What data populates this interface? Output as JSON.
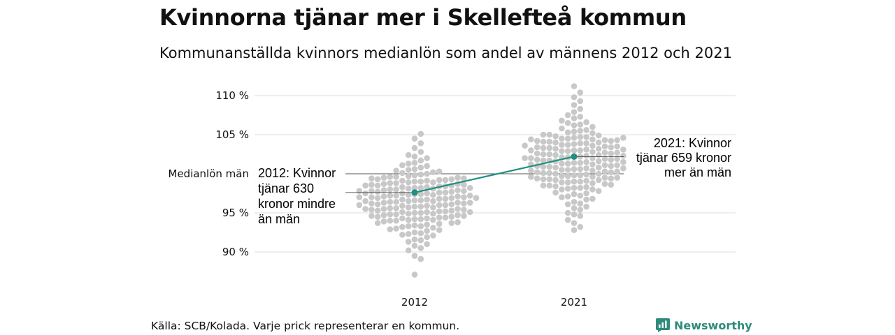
{
  "title": "Kvinnorna tjänar mer i Skellefteå kommun",
  "subtitle": "Kommunanställda kvinnors medianlön som andel av männens 2012 och 2021",
  "source": "Källa: SCB/Kolada. Varje prick representerar en kommun.",
  "brand": {
    "name": "Newsworthy",
    "icon": "newsworthy-logo-icon",
    "color": "#2e8b7d"
  },
  "chart_data": {
    "type": "scatter",
    "subtype": "beeswarm",
    "categories": [
      "2012",
      "2021"
    ],
    "y_ticks": [
      90,
      95,
      100,
      105,
      110
    ],
    "y_tick_labels": [
      "90 %",
      "95 %",
      "Medianlön män",
      "105 %",
      "110 %"
    ],
    "ylim": [
      86,
      112
    ],
    "grid": true,
    "dot_color": "#c8c8c8",
    "highlight_color": "#1f8f82",
    "highlight": {
      "name": "Skellefteå",
      "values": [
        97.6,
        102.2
      ]
    },
    "annotations": [
      {
        "category": "2012",
        "lines": [
          "2012: Kvinnor",
          "tjänar 630",
          "kronor mindre",
          "än män"
        ]
      },
      {
        "category": "2021",
        "lines": [
          "2021: Kvinnor",
          "tjänar 659 kronor",
          "mer än män"
        ]
      }
    ],
    "swarms": [
      {
        "category": "2012",
        "values": [
          87.1,
          89.1,
          89.5,
          90.2,
          90.5,
          90.8,
          91.0,
          91.3,
          91.6,
          91.9,
          92.1,
          92.3,
          92.5,
          92.7,
          92.9,
          93.1,
          93.2,
          93.4,
          93.5,
          93.7,
          93.8,
          94.0,
          94.1,
          94.2,
          94.3,
          94.4,
          94.5,
          94.6,
          94.7,
          94.8,
          94.9,
          95.0,
          95.1,
          95.2,
          95.3,
          95.4,
          95.5,
          95.6,
          95.7,
          95.8,
          95.9,
          96.0,
          96.1,
          96.2,
          96.3,
          96.4,
          96.5,
          96.6,
          96.7,
          96.8,
          96.9,
          97.0,
          97.1,
          97.2,
          97.3,
          97.4,
          97.5,
          97.6,
          97.7,
          97.8,
          97.9,
          98.0,
          98.1,
          98.2,
          98.3,
          98.4,
          98.5,
          98.6,
          98.7,
          98.8,
          98.9,
          99.0,
          99.1,
          99.2,
          99.3,
          99.4,
          99.5,
          99.6,
          99.7,
          99.8,
          100.0,
          100.2,
          100.4,
          100.6,
          100.8,
          101.1,
          101.4,
          101.7,
          102.0,
          102.4,
          102.8,
          103.3,
          103.9,
          104.5,
          105.1,
          94.0,
          94.5,
          95.0,
          95.5,
          96.0,
          96.5,
          97.0,
          97.5,
          98.0,
          98.5,
          99.0,
          94.2,
          94.8,
          95.3,
          95.8,
          96.3,
          96.8,
          97.3,
          97.8,
          98.3,
          98.8,
          99.3,
          93.6,
          94.4,
          95.2,
          96.1,
          96.9,
          97.7,
          98.6,
          99.4,
          93.3,
          94.1,
          95.4,
          96.2,
          97.1,
          98.1,
          99.1,
          100.1,
          93.9,
          94.7,
          95.6,
          96.4,
          97.2,
          98.2,
          99.2,
          100.3,
          92.8,
          93.0,
          94.3,
          95.7,
          96.7,
          97.9,
          98.9,
          100.5,
          101.0,
          92.4,
          93.3,
          94.6,
          95.9,
          97.4,
          98.4,
          99.6,
          101.3,
          91.5,
          92.2,
          93.7,
          95.1,
          96.6,
          97.6,
          98.7,
          99.9,
          102.2,
          96.0,
          96.5,
          97.0,
          97.5,
          95.5,
          96.9,
          97.2,
          94.9,
          95.1,
          96.3,
          97.8,
          98.2,
          98.5,
          99.5
        ]
      },
      {
        "category": "2021",
        "values": [
          92.8,
          93.2,
          93.7,
          94.1,
          94.6,
          95.0,
          95.4,
          95.8,
          96.1,
          96.4,
          96.7,
          97.0,
          97.2,
          97.4,
          97.6,
          97.8,
          98.0,
          98.2,
          98.3,
          98.5,
          98.6,
          98.8,
          98.9,
          99.0,
          99.1,
          99.2,
          99.3,
          99.4,
          99.5,
          99.6,
          99.7,
          99.8,
          99.9,
          100.0,
          100.1,
          100.2,
          100.3,
          100.4,
          100.5,
          100.6,
          100.7,
          100.8,
          100.9,
          101.0,
          101.1,
          101.2,
          101.3,
          101.4,
          101.5,
          101.6,
          101.7,
          101.8,
          101.9,
          102.0,
          102.1,
          102.2,
          102.3,
          102.4,
          102.5,
          102.6,
          102.7,
          102.8,
          102.9,
          103.0,
          103.1,
          103.2,
          103.3,
          103.4,
          103.5,
          103.6,
          103.7,
          103.8,
          103.9,
          104.0,
          104.1,
          104.2,
          104.3,
          104.4,
          104.5,
          104.6,
          104.7,
          104.8,
          104.9,
          105.0,
          105.2,
          105.4,
          105.6,
          105.8,
          106.0,
          106.2,
          106.5,
          106.8,
          107.1,
          107.5,
          107.9,
          108.3,
          108.8,
          109.3,
          109.8,
          110.4,
          111.2,
          98.0,
          98.5,
          99.0,
          99.5,
          100.0,
          100.5,
          101.0,
          101.5,
          102.0,
          102.5,
          103.0,
          103.5,
          104.0,
          104.5,
          105.0,
          98.2,
          98.7,
          99.2,
          99.7,
          100.2,
          100.7,
          101.2,
          101.7,
          102.2,
          102.7,
          103.2,
          103.7,
          104.2,
          104.7,
          97.5,
          98.4,
          99.3,
          100.3,
          101.3,
          102.3,
          103.3,
          104.3,
          105.3,
          106.3,
          97.1,
          98.1,
          99.4,
          100.4,
          101.4,
          102.4,
          103.4,
          104.4,
          105.5,
          96.8,
          98.9,
          100.6,
          101.6,
          102.6,
          103.6,
          104.6,
          106.6,
          96.2,
          99.8,
          100.9,
          101.9,
          102.9,
          103.9,
          107.3,
          95.6,
          99.6,
          101.1,
          102.1,
          103.1,
          104.1,
          94.8,
          100.1,
          102.0,
          103.0,
          100.8,
          101.8
        ]
      }
    ]
  }
}
